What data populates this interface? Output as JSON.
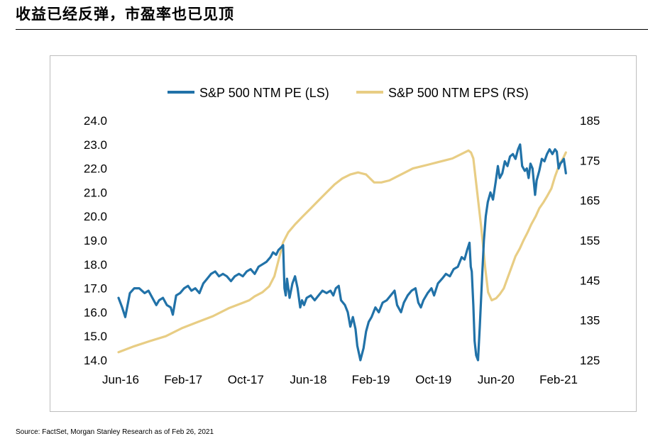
{
  "title": "收益已经反弹，市盈率也已见顶",
  "source": "Source: FactSet, Morgan Stanley Research as of Feb 26, 2021",
  "chart_data": {
    "type": "line",
    "title": "",
    "xlabel": "",
    "ylabel_left": "",
    "ylabel_right": "",
    "legend_position": "top",
    "grid": false,
    "x_tick_labels": [
      "Jun-16",
      "Feb-17",
      "Oct-17",
      "Jun-18",
      "Feb-19",
      "Oct-19",
      "Jun-20",
      "Feb-21"
    ],
    "y_left": {
      "min": 14.0,
      "max": 24.0,
      "ticks": [
        "14.0",
        "15.0",
        "16.0",
        "17.0",
        "18.0",
        "19.0",
        "20.0",
        "21.0",
        "22.0",
        "23.0",
        "24.0"
      ]
    },
    "y_right": {
      "min": 125,
      "max": 185,
      "ticks": [
        "125",
        "135",
        "145",
        "155",
        "165",
        "175",
        "185"
      ]
    },
    "series": [
      {
        "name": "S&P 500 NTM PE (LS)",
        "axis": "left",
        "color": "#2172A8",
        "points": [
          [
            "2016-06-01",
            16.6
          ],
          [
            "2016-06-15",
            16.2
          ],
          [
            "2016-06-27",
            15.8
          ],
          [
            "2016-07-15",
            16.8
          ],
          [
            "2016-08-01",
            17.0
          ],
          [
            "2016-08-20",
            17.0
          ],
          [
            "2016-09-10",
            16.8
          ],
          [
            "2016-09-25",
            16.9
          ],
          [
            "2016-10-10",
            16.6
          ],
          [
            "2016-10-25",
            16.3
          ],
          [
            "2016-11-05",
            16.5
          ],
          [
            "2016-11-20",
            16.6
          ],
          [
            "2016-12-05",
            16.3
          ],
          [
            "2016-12-20",
            16.2
          ],
          [
            "2016-12-28",
            15.9
          ],
          [
            "2017-01-10",
            16.7
          ],
          [
            "2017-01-25",
            16.8
          ],
          [
            "2017-02-10",
            17.0
          ],
          [
            "2017-02-25",
            17.1
          ],
          [
            "2017-03-10",
            16.9
          ],
          [
            "2017-03-25",
            17.0
          ],
          [
            "2017-04-10",
            16.8
          ],
          [
            "2017-04-25",
            17.2
          ],
          [
            "2017-05-10",
            17.4
          ],
          [
            "2017-05-25",
            17.6
          ],
          [
            "2017-06-10",
            17.7
          ],
          [
            "2017-06-25",
            17.5
          ],
          [
            "2017-07-10",
            17.6
          ],
          [
            "2017-07-25",
            17.5
          ],
          [
            "2017-08-10",
            17.3
          ],
          [
            "2017-08-25",
            17.5
          ],
          [
            "2017-09-10",
            17.6
          ],
          [
            "2017-09-25",
            17.5
          ],
          [
            "2017-10-10",
            17.7
          ],
          [
            "2017-10-25",
            17.8
          ],
          [
            "2017-11-10",
            17.6
          ],
          [
            "2017-11-25",
            17.9
          ],
          [
            "2017-12-10",
            18.0
          ],
          [
            "2017-12-25",
            18.1
          ],
          [
            "2018-01-10",
            18.3
          ],
          [
            "2018-01-20",
            18.5
          ],
          [
            "2018-02-01",
            18.4
          ],
          [
            "2018-02-10",
            18.6
          ],
          [
            "2018-02-20",
            18.7
          ],
          [
            "2018-02-28",
            18.8
          ],
          [
            "2018-03-05",
            17.0
          ],
          [
            "2018-03-10",
            16.7
          ],
          [
            "2018-03-15",
            17.4
          ],
          [
            "2018-03-25",
            16.6
          ],
          [
            "2018-04-05",
            17.2
          ],
          [
            "2018-04-15",
            17.5
          ],
          [
            "2018-04-25",
            17.0
          ],
          [
            "2018-05-05",
            16.2
          ],
          [
            "2018-05-12",
            16.5
          ],
          [
            "2018-05-20",
            16.3
          ],
          [
            "2018-05-30",
            16.6
          ],
          [
            "2018-06-15",
            16.7
          ],
          [
            "2018-06-30",
            16.5
          ],
          [
            "2018-07-15",
            16.7
          ],
          [
            "2018-07-30",
            16.9
          ],
          [
            "2018-08-15",
            16.8
          ],
          [
            "2018-08-30",
            16.9
          ],
          [
            "2018-09-10",
            16.7
          ],
          [
            "2018-09-20",
            17.0
          ],
          [
            "2018-10-01",
            17.1
          ],
          [
            "2018-10-10",
            16.5
          ],
          [
            "2018-10-25",
            16.3
          ],
          [
            "2018-11-05",
            16.0
          ],
          [
            "2018-11-15",
            15.4
          ],
          [
            "2018-11-25",
            15.8
          ],
          [
            "2018-12-05",
            15.3
          ],
          [
            "2018-12-12",
            14.6
          ],
          [
            "2018-12-24",
            14.0
          ],
          [
            "2019-01-05",
            14.5
          ],
          [
            "2019-01-15",
            15.2
          ],
          [
            "2019-01-25",
            15.6
          ],
          [
            "2019-02-05",
            15.8
          ],
          [
            "2019-02-20",
            16.2
          ],
          [
            "2019-03-05",
            16.0
          ],
          [
            "2019-03-20",
            16.4
          ],
          [
            "2019-04-05",
            16.5
          ],
          [
            "2019-04-20",
            16.7
          ],
          [
            "2019-05-05",
            16.9
          ],
          [
            "2019-05-15",
            16.3
          ],
          [
            "2019-05-30",
            16.0
          ],
          [
            "2019-06-10",
            16.4
          ],
          [
            "2019-06-25",
            16.7
          ],
          [
            "2019-07-10",
            16.9
          ],
          [
            "2019-07-25",
            17.0
          ],
          [
            "2019-08-05",
            16.4
          ],
          [
            "2019-08-15",
            16.2
          ],
          [
            "2019-08-25",
            16.5
          ],
          [
            "2019-09-10",
            16.8
          ],
          [
            "2019-09-25",
            17.0
          ],
          [
            "2019-10-05",
            16.7
          ],
          [
            "2019-10-20",
            17.2
          ],
          [
            "2019-11-05",
            17.4
          ],
          [
            "2019-11-20",
            17.6
          ],
          [
            "2019-12-05",
            17.5
          ],
          [
            "2019-12-20",
            17.8
          ],
          [
            "2020-01-05",
            17.9
          ],
          [
            "2020-01-20",
            18.3
          ],
          [
            "2020-01-31",
            18.2
          ],
          [
            "2020-02-10",
            18.6
          ],
          [
            "2020-02-19",
            18.9
          ],
          [
            "2020-02-24",
            17.9
          ],
          [
            "2020-02-28",
            17.7
          ],
          [
            "2020-03-05",
            16.3
          ],
          [
            "2020-03-10",
            14.8
          ],
          [
            "2020-03-16",
            14.2
          ],
          [
            "2020-03-23",
            14.0
          ],
          [
            "2020-03-30",
            15.4
          ],
          [
            "2020-04-08",
            17.5
          ],
          [
            "2020-04-15",
            19.0
          ],
          [
            "2020-04-22",
            20.0
          ],
          [
            "2020-04-30",
            20.6
          ],
          [
            "2020-05-10",
            21.0
          ],
          [
            "2020-05-20",
            20.7
          ],
          [
            "2020-05-30",
            21.4
          ],
          [
            "2020-06-08",
            22.1
          ],
          [
            "2020-06-15",
            21.6
          ],
          [
            "2020-06-25",
            21.8
          ],
          [
            "2020-07-05",
            22.3
          ],
          [
            "2020-07-15",
            22.1
          ],
          [
            "2020-07-25",
            22.5
          ],
          [
            "2020-08-05",
            22.6
          ],
          [
            "2020-08-15",
            22.4
          ],
          [
            "2020-08-25",
            22.8
          ],
          [
            "2020-09-02",
            23.0
          ],
          [
            "2020-09-10",
            22.1
          ],
          [
            "2020-09-20",
            21.9
          ],
          [
            "2020-09-28",
            22.0
          ],
          [
            "2020-10-05",
            21.6
          ],
          [
            "2020-10-12",
            22.2
          ],
          [
            "2020-10-20",
            22.0
          ],
          [
            "2020-10-30",
            20.9
          ],
          [
            "2020-11-05",
            21.5
          ],
          [
            "2020-11-15",
            21.9
          ],
          [
            "2020-11-25",
            22.4
          ],
          [
            "2020-12-05",
            22.3
          ],
          [
            "2020-12-15",
            22.6
          ],
          [
            "2020-12-25",
            22.8
          ],
          [
            "2021-01-05",
            22.6
          ],
          [
            "2021-01-15",
            22.8
          ],
          [
            "2021-01-22",
            22.7
          ],
          [
            "2021-01-29",
            22.0
          ],
          [
            "2021-02-05",
            22.2
          ],
          [
            "2021-02-12",
            22.3
          ],
          [
            "2021-02-18",
            22.4
          ],
          [
            "2021-02-26",
            21.8
          ]
        ]
      },
      {
        "name": "S&P 500 NTM EPS (RS)",
        "axis": "right",
        "color": "#E8CD84",
        "points": [
          [
            "2016-06-01",
            127.0
          ],
          [
            "2016-08-01",
            128.5
          ],
          [
            "2016-10-01",
            129.8
          ],
          [
            "2016-12-01",
            131.0
          ],
          [
            "2017-02-01",
            133.0
          ],
          [
            "2017-04-01",
            134.5
          ],
          [
            "2017-06-01",
            136.0
          ],
          [
            "2017-08-01",
            138.0
          ],
          [
            "2017-10-01",
            139.5
          ],
          [
            "2017-10-20",
            140.0
          ],
          [
            "2017-11-10",
            141.0
          ],
          [
            "2017-12-10",
            142.0
          ],
          [
            "2018-01-05",
            143.5
          ],
          [
            "2018-01-25",
            146.0
          ],
          [
            "2018-02-10",
            150.0
          ],
          [
            "2018-02-28",
            154.5
          ],
          [
            "2018-03-20",
            157.0
          ],
          [
            "2018-04-15",
            159.0
          ],
          [
            "2018-05-15",
            161.0
          ],
          [
            "2018-06-15",
            163.0
          ],
          [
            "2018-07-15",
            165.0
          ],
          [
            "2018-08-15",
            167.0
          ],
          [
            "2018-09-15",
            169.0
          ],
          [
            "2018-10-15",
            170.5
          ],
          [
            "2018-11-15",
            171.5
          ],
          [
            "2018-12-15",
            172.0
          ],
          [
            "2019-01-15",
            171.5
          ],
          [
            "2019-02-15",
            169.5
          ],
          [
            "2019-03-15",
            169.5
          ],
          [
            "2019-04-15",
            170.0
          ],
          [
            "2019-05-15",
            171.0
          ],
          [
            "2019-06-15",
            172.0
          ],
          [
            "2019-07-15",
            173.0
          ],
          [
            "2019-08-15",
            173.5
          ],
          [
            "2019-09-15",
            174.0
          ],
          [
            "2019-10-15",
            174.5
          ],
          [
            "2019-11-15",
            175.0
          ],
          [
            "2019-12-15",
            175.5
          ],
          [
            "2020-01-15",
            176.5
          ],
          [
            "2020-02-15",
            177.5
          ],
          [
            "2020-02-25",
            177.0
          ],
          [
            "2020-03-05",
            175.5
          ],
          [
            "2020-03-20",
            167.0
          ],
          [
            "2020-04-05",
            158.0
          ],
          [
            "2020-04-20",
            148.0
          ],
          [
            "2020-05-01",
            142.0
          ],
          [
            "2020-05-15",
            140.0
          ],
          [
            "2020-06-01",
            140.5
          ],
          [
            "2020-06-15",
            141.5
          ],
          [
            "2020-07-01",
            143.0
          ],
          [
            "2020-07-15",
            145.5
          ],
          [
            "2020-08-01",
            148.5
          ],
          [
            "2020-08-15",
            151.0
          ],
          [
            "2020-09-01",
            153.0
          ],
          [
            "2020-09-15",
            155.0
          ],
          [
            "2020-10-01",
            157.0
          ],
          [
            "2020-10-15",
            159.0
          ],
          [
            "2020-11-01",
            161.0
          ],
          [
            "2020-11-15",
            163.0
          ],
          [
            "2020-12-01",
            164.5
          ],
          [
            "2020-12-15",
            166.0
          ],
          [
            "2021-01-01",
            168.0
          ],
          [
            "2021-01-15",
            171.0
          ],
          [
            "2021-02-01",
            174.0
          ],
          [
            "2021-02-15",
            175.5
          ],
          [
            "2021-02-26",
            177.0
          ]
        ]
      }
    ]
  }
}
